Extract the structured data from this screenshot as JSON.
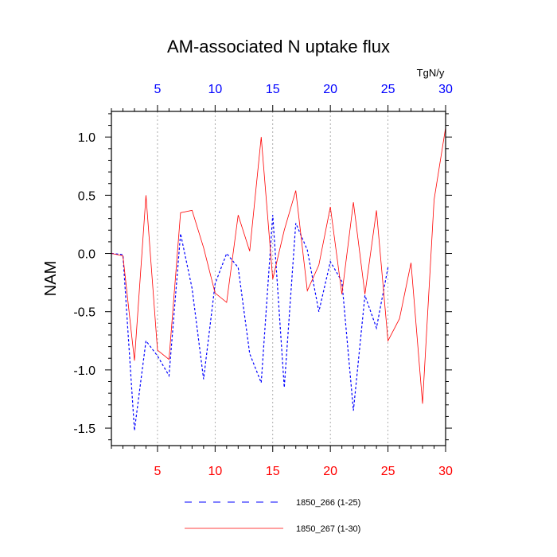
{
  "chart_data": {
    "type": "line",
    "title": "AM-associated N uptake flux",
    "ylabel": "NAM",
    "top_axis_units": "TgN/y",
    "xlim": [
      1,
      30
    ],
    "ylim": [
      -1.65,
      1.22
    ],
    "x_ticks": [
      5,
      10,
      15,
      20,
      25,
      30
    ],
    "y_ticks": [
      -1.5,
      -1.0,
      -0.5,
      0.0,
      0.5,
      1.0
    ],
    "y_tick_labels": [
      "-1.5",
      "-1.0",
      "-0.5",
      "0.0",
      "0.5",
      "1.0"
    ],
    "grid": "vertical dotted at major x ticks",
    "bottom_tick_color": "#ff0000",
    "top_tick_color": "#0000ff",
    "series": [
      {
        "name": "1850_266 (1-25)",
        "color": "#0000ff",
        "style": "dashed",
        "x": [
          1,
          2,
          3,
          4,
          5,
          6,
          7,
          8,
          9,
          10,
          11,
          12,
          13,
          14,
          15,
          16,
          17,
          18,
          19,
          20,
          21,
          22,
          23,
          24,
          25
        ],
        "values": [
          0.0,
          -0.01,
          -1.52,
          -0.75,
          -0.88,
          -1.05,
          0.17,
          -0.3,
          -1.08,
          -0.26,
          0.0,
          -0.12,
          -0.86,
          -1.11,
          0.33,
          -1.15,
          0.26,
          0.03,
          -0.5,
          -0.07,
          -0.24,
          -1.35,
          -0.36,
          -0.64,
          -0.12
        ]
      },
      {
        "name": "1850_267 (1-30)",
        "color": "#ff0000",
        "style": "solid",
        "x": [
          1,
          2,
          3,
          4,
          5,
          6,
          7,
          8,
          9,
          10,
          11,
          12,
          13,
          14,
          15,
          16,
          17,
          18,
          19,
          20,
          21,
          22,
          23,
          24,
          25,
          26,
          27,
          28,
          29,
          30
        ],
        "values": [
          0.0,
          -0.02,
          -0.92,
          0.5,
          -0.83,
          -0.91,
          0.35,
          0.37,
          0.05,
          -0.34,
          -0.42,
          0.33,
          0.02,
          1.0,
          -0.22,
          0.2,
          0.54,
          -0.32,
          -0.1,
          0.4,
          -0.35,
          0.44,
          -0.35,
          0.37,
          -0.75,
          -0.56,
          -0.08,
          -1.29,
          0.46,
          1.08
        ]
      }
    ]
  }
}
